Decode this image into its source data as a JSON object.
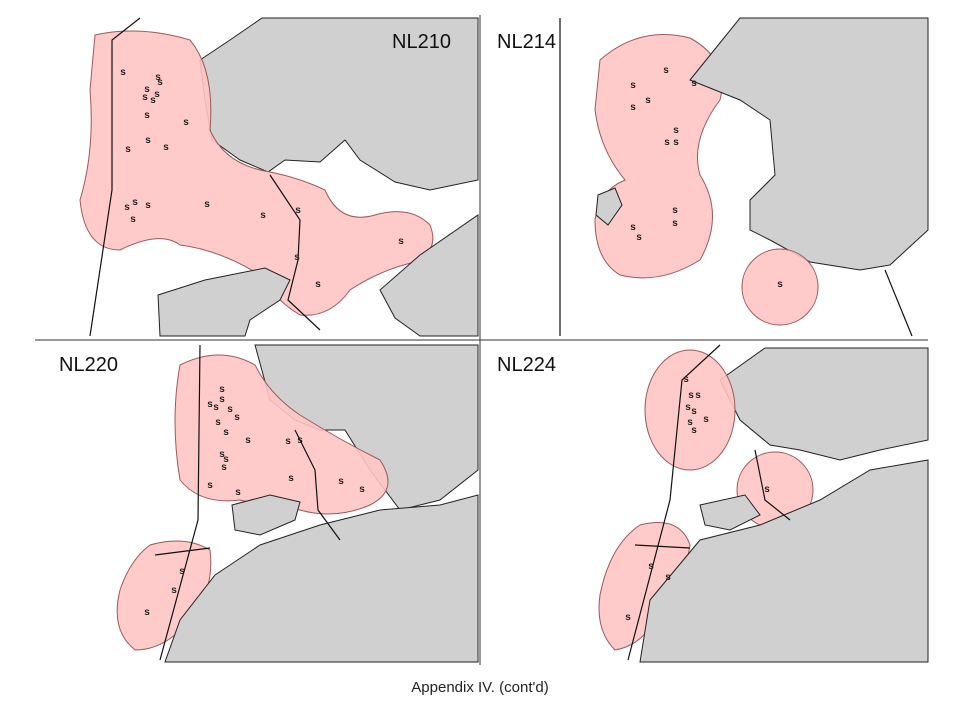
{
  "panels": [
    {
      "label": "NL210",
      "marker": "s"
    },
    {
      "label": "NL214",
      "marker": "s"
    },
    {
      "label": "NL220",
      "marker": "s"
    },
    {
      "label": "NL224",
      "marker": "s"
    }
  ],
  "caption": "Appendix IV.  (cont'd)"
}
